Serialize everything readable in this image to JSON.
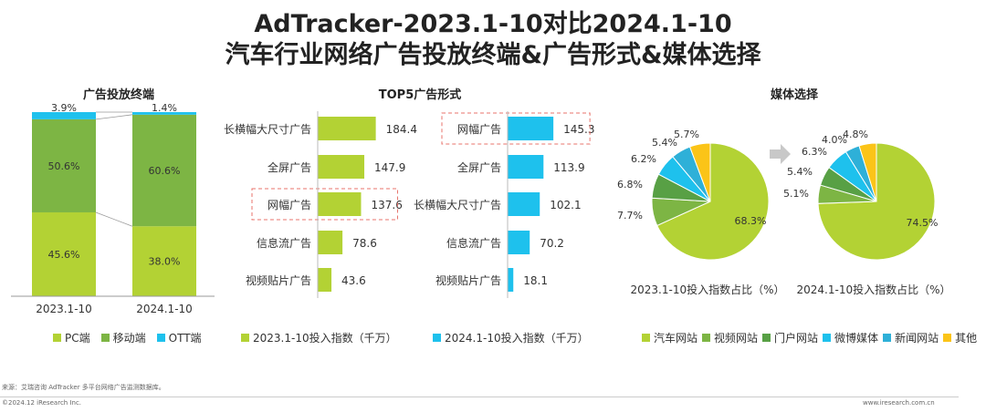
{
  "title_line1": "AdTracker-2023.1-10对比2024.1-10",
  "title_line2": "汽车行业网络广告投放终端&广告形式&媒体选择",
  "colors": {
    "green_dark": "#7db544",
    "green_light": "#b3d234",
    "blue": "#1ec1ed",
    "orange": "#fbc418",
    "dark_green2": "#58a045",
    "teal": "#2eb0d8"
  },
  "chart_data": [
    {
      "type": "bar",
      "stacked": true,
      "title": "广告投放终端",
      "categories": [
        "2023.1-10",
        "2024.1-10"
      ],
      "series": [
        {
          "name": "PC端",
          "values": [
            45.6,
            38.0
          ],
          "labels": [
            "45.6%",
            "38.0%"
          ]
        },
        {
          "name": "移动端",
          "values": [
            50.6,
            60.6
          ],
          "labels": [
            "50.6%",
            "60.6%"
          ]
        },
        {
          "name": "OTT端",
          "values": [
            3.9,
            1.4
          ],
          "labels": [
            "3.9%",
            "1.4%"
          ]
        }
      ]
    },
    {
      "type": "bar",
      "orientation": "horizontal",
      "title": "TOP5广告形式",
      "series_name": "2023.1-10投入指数（千万）",
      "categories": [
        "长横幅大尺寸广告",
        "全屏广告",
        "网幅广告",
        "信息流广告",
        "视频贴片广告"
      ],
      "values": [
        184.4,
        147.9,
        137.6,
        78.6,
        43.6
      ],
      "labels": [
        "184.4",
        "147.9",
        "137.6",
        "78.6",
        "43.6"
      ]
    },
    {
      "type": "bar",
      "orientation": "horizontal",
      "series_name": "2024.1-10投入指数（千万）",
      "categories": [
        "网幅广告",
        "全屏广告",
        "长横幅大尺寸广告",
        "信息流广告",
        "视频贴片广告"
      ],
      "values": [
        145.3,
        113.9,
        102.1,
        70.2,
        18.1
      ],
      "labels": [
        "145.3",
        "113.9",
        "102.1",
        "70.2",
        "18.1"
      ]
    },
    {
      "type": "pie",
      "title": "媒体选择",
      "caption": "2023.1-10投入指数占比（%）",
      "categories": [
        "汽车网站",
        "视频网站",
        "门户网站",
        "微博媒体",
        "新闻网站",
        "其他"
      ],
      "values": [
        68.3,
        7.7,
        6.8,
        6.2,
        5.4,
        5.7
      ],
      "labels": [
        "68.3%",
        "7.7%",
        "6.8%",
        "6.2%",
        "5.4%",
        "5.7%"
      ]
    },
    {
      "type": "pie",
      "caption": "2024.1-10投入指数占比（%）",
      "categories": [
        "汽车网站",
        "视频网站",
        "门户网站",
        "微博媒体",
        "新闻网站",
        "其他"
      ],
      "values": [
        74.5,
        5.1,
        5.4,
        6.3,
        4.0,
        4.8
      ],
      "labels": [
        "74.5%",
        "5.1%",
        "5.4%",
        "6.3%",
        "4.0%",
        "4.8%"
      ]
    }
  ],
  "legends": {
    "terminal": [
      {
        "label": "PC端",
        "color": "#b3d234"
      },
      {
        "label": "移动端",
        "color": "#7db544"
      },
      {
        "label": "OTT端",
        "color": "#1ec1ed"
      }
    ],
    "form_2023": "2023.1-10投入指数（千万）",
    "form_2024": "2024.1-10投入指数（千万）",
    "media": [
      {
        "label": "汽车网站",
        "color": "#b3d234"
      },
      {
        "label": "视频网站",
        "color": "#7db544"
      },
      {
        "label": "门户网站",
        "color": "#58a045"
      },
      {
        "label": "微博媒体",
        "color": "#1ec1ed"
      },
      {
        "label": "新闻网站",
        "color": "#2eb0d8"
      },
      {
        "label": "其他",
        "color": "#fbc418"
      }
    ]
  },
  "footer": {
    "source": "来源：艾瑞咨询 AdTracker 多平台网络广告监测数据库。",
    "copyright": "©2024.12 iResearch Inc.",
    "website": "www.iresearch.com.cn"
  }
}
